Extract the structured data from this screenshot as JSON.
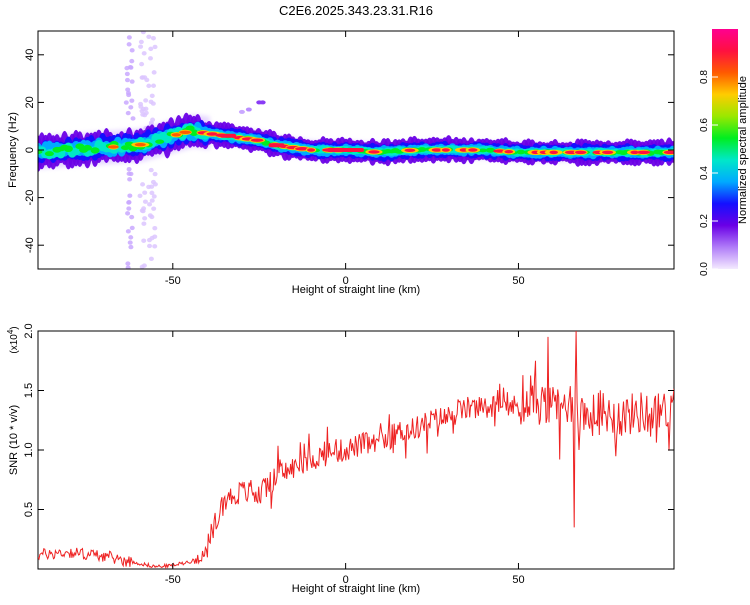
{
  "page_title": "C2E6.2025.343.23.31.R16",
  "chart_data": [
    {
      "type": "heatmap",
      "xlabel": "Height of straight line (km)",
      "ylabel": "Frequency (Hz)",
      "xlim": [
        -89,
        95
      ],
      "ylim": [
        -50,
        50
      ],
      "xticks": [
        -50,
        0,
        50
      ],
      "yticks": [
        -40,
        -20,
        0,
        20,
        40
      ],
      "ridge": {
        "x": [
          -89,
          -80,
          -70,
          -60,
          -55,
          -50,
          -45,
          -40,
          -35,
          -30,
          -25,
          -20,
          -15,
          -10,
          0,
          10,
          20,
          30,
          40,
          50,
          60,
          70,
          80,
          95
        ],
        "freq": [
          -1,
          0,
          1,
          2,
          4,
          6,
          8,
          7,
          6,
          5,
          4,
          2,
          1,
          0,
          0,
          -1,
          0,
          0,
          0,
          -1,
          -1,
          -1,
          -1,
          -1
        ]
      },
      "colorbar": {
        "label": "Normalized spectral amplitude",
        "range": [
          0,
          1
        ],
        "ticks": [
          0.0,
          0.2,
          0.4,
          0.6,
          0.8
        ],
        "tick_labels": [
          "0.0",
          "0.2",
          "0.4",
          "0.6",
          "0.8"
        ],
        "colors": [
          "#f4eaff",
          "#b07cf8",
          "#6a00e6",
          "#1410ff",
          "#00aaff",
          "#00e8c8",
          "#00ee20",
          "#9ae800",
          "#ffcc00",
          "#ff5a00",
          "#ff1040",
          "#ff0090"
        ]
      }
    },
    {
      "type": "line",
      "xlabel": "Height of straight line (km)",
      "ylabel": "SNR (10 * v/v)",
      "scale_note": "(x10",
      "scale_exp": "4",
      "scale_close": ")",
      "xlim": [
        -89,
        95
      ],
      "ylim": [
        0,
        2.0
      ],
      "xticks": [
        -50,
        0,
        50
      ],
      "yticks": [
        0.5,
        1.0,
        1.5,
        2.0
      ],
      "ytick_labels": [
        "0.5",
        "1.0",
        "1.5",
        "2.0"
      ],
      "color": "#ee2222",
      "envelope": {
        "x": [
          -89,
          -80,
          -70,
          -62,
          -55,
          -50,
          -44,
          -40,
          -37,
          -35,
          -30,
          -25,
          -20,
          -15,
          -10,
          -5,
          0,
          5,
          10,
          15,
          20,
          25,
          30,
          35,
          40,
          45,
          50,
          55,
          60,
          65,
          70,
          75,
          80,
          85,
          90,
          95
        ],
        "y": [
          0.12,
          0.14,
          0.11,
          0.06,
          0.02,
          0.03,
          0.07,
          0.15,
          0.45,
          0.58,
          0.65,
          0.62,
          0.78,
          0.85,
          0.92,
          0.97,
          1.0,
          1.05,
          1.05,
          1.15,
          1.18,
          1.25,
          1.28,
          1.35,
          1.35,
          1.38,
          1.36,
          1.4,
          1.35,
          1.4,
          1.28,
          1.32,
          1.28,
          1.32,
          1.3,
          1.35
        ]
      },
      "spikes": [
        {
          "x": 66.6,
          "y": 2.0
        },
        {
          "x": 66.0,
          "y": 0.35
        },
        {
          "x": 67.5,
          "y": 1.0
        },
        {
          "x": 58.5,
          "y": 1.95
        },
        {
          "x": 55.0,
          "y": 1.75
        },
        {
          "x": 62.0,
          "y": 0.92
        }
      ]
    }
  ]
}
